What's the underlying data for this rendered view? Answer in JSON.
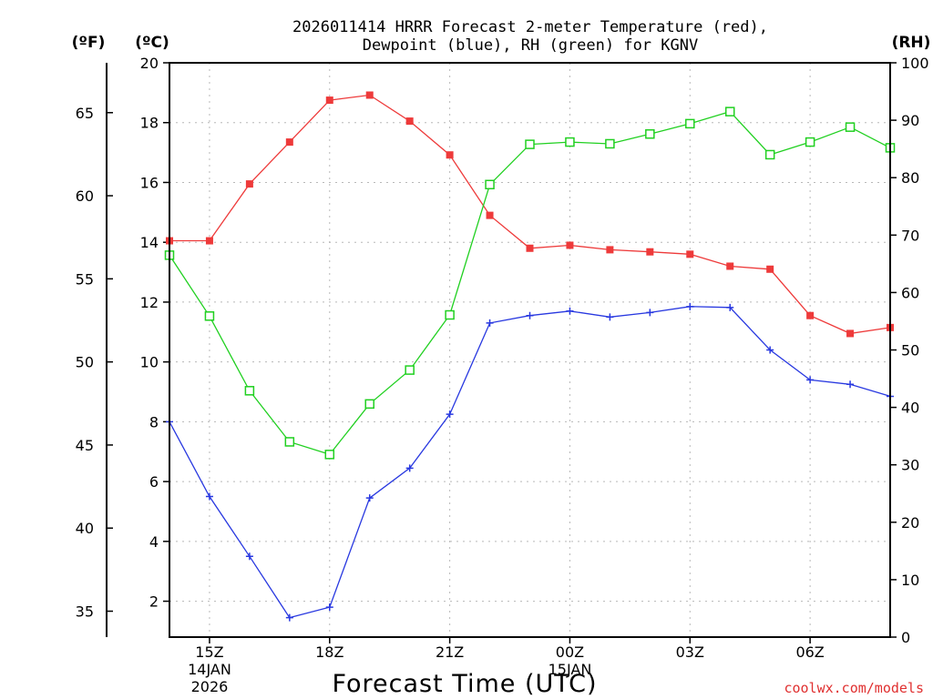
{
  "chart_data": {
    "type": "line",
    "title_line1": "2026011414 HRRR Forecast 2-meter Temperature (red),",
    "title_line2": "Dewpoint (blue), RH (green) for KGNV",
    "xlabel": "Forecast Time (UTC)",
    "watermark": "coolwx.com/models",
    "left_axis_f_label": "(ºF)",
    "left_axis_c_label": "(ºC)",
    "right_axis_label": "(RH)",
    "hours": [
      14,
      15,
      16,
      17,
      18,
      19,
      20,
      21,
      22,
      23,
      24,
      25,
      26,
      27,
      28,
      29,
      30,
      31,
      32
    ],
    "x_ticks": [
      {
        "hour": 15,
        "label": "15Z",
        "date1": "14JAN",
        "date2": "2026"
      },
      {
        "hour": 18,
        "label": "18Z"
      },
      {
        "hour": 21,
        "label": "21Z"
      },
      {
        "hour": 24,
        "label": "00Z",
        "date1": "15JAN"
      },
      {
        "hour": 27,
        "label": "03Z"
      },
      {
        "hour": 30,
        "label": "06Z"
      }
    ],
    "c_ylim": [
      0.8,
      20
    ],
    "c_ticks": [
      "2",
      "4",
      "6",
      "8",
      "10",
      "12",
      "14",
      "16",
      "18",
      "20"
    ],
    "f_ticks": [
      "35",
      "40",
      "45",
      "50",
      "55",
      "60",
      "65"
    ],
    "rh_ylim": [
      0,
      100
    ],
    "rh_ticks": [
      "0",
      "10",
      "20",
      "30",
      "40",
      "50",
      "60",
      "70",
      "80",
      "90",
      "100"
    ],
    "series": [
      {
        "name": "2-meter Temperature",
        "unit": "C",
        "color": "#ee3a3a",
        "values": [
          14.05,
          14.05,
          15.95,
          17.35,
          18.75,
          18.92,
          18.05,
          16.92,
          14.9,
          13.8,
          13.9,
          13.75,
          13.68,
          13.6,
          13.2,
          13.1,
          11.55,
          10.95,
          11.15
        ]
      },
      {
        "name": "Dewpoint",
        "unit": "C",
        "color": "#2838e0",
        "values": [
          8.0,
          5.5,
          3.5,
          1.45,
          1.8,
          5.45,
          6.45,
          8.25,
          11.3,
          11.55,
          11.7,
          11.5,
          11.65,
          11.85,
          11.82,
          10.4,
          9.4,
          9.25,
          8.85
        ]
      },
      {
        "name": "RH",
        "unit": "%",
        "color": "#20d020",
        "values": [
          66.5,
          55.9,
          42.9,
          34.0,
          31.8,
          40.6,
          46.5,
          56.1,
          78.8,
          85.8,
          86.2,
          85.9,
          87.6,
          89.4,
          91.5,
          84.0,
          86.2,
          88.8,
          85.2
        ]
      }
    ]
  }
}
